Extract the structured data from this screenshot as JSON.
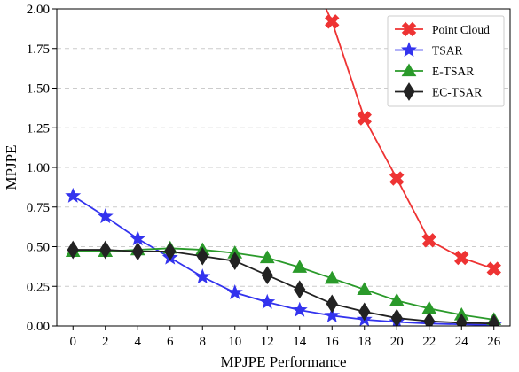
{
  "chart_data": {
    "type": "line",
    "xlabel": "MPJPE Performance",
    "ylabel": "MPJPE",
    "x": [
      0,
      2,
      4,
      6,
      8,
      10,
      12,
      14,
      16,
      18,
      20,
      22,
      24,
      26
    ],
    "xlim": [
      -1,
      27
    ],
    "ylim": [
      0,
      2.0
    ],
    "xticks": [
      "0",
      "2",
      "4",
      "6",
      "8",
      "10",
      "12",
      "14",
      "16",
      "18",
      "20",
      "22",
      "24",
      "26"
    ],
    "yticks": [
      "0.00",
      "0.25",
      "0.50",
      "0.75",
      "1.00",
      "1.25",
      "1.50",
      "1.75",
      "2.00"
    ],
    "grid": "y-dashed",
    "legend_position": "top-right",
    "series": [
      {
        "name": "Point Cloud",
        "color": "#ee3333",
        "marker": "x-cross-icon",
        "x": [
          15.4,
          16,
          18,
          20,
          22,
          24,
          26
        ],
        "values": [
          2.05,
          1.92,
          1.31,
          0.93,
          0.54,
          0.43,
          0.36
        ]
      },
      {
        "name": "TSAR",
        "color": "#3333ee",
        "marker": "star-icon",
        "values": [
          0.82,
          0.69,
          0.55,
          0.43,
          0.31,
          0.21,
          0.15,
          0.1,
          0.065,
          0.04,
          0.025,
          0.015,
          0.01,
          0.005
        ]
      },
      {
        "name": "E-TSAR",
        "color": "#2a9a2a",
        "marker": "triangle-icon",
        "values": [
          0.47,
          0.47,
          0.48,
          0.49,
          0.48,
          0.46,
          0.43,
          0.37,
          0.3,
          0.23,
          0.16,
          0.11,
          0.07,
          0.04
        ]
      },
      {
        "name": "EC-TSAR",
        "color": "#222222",
        "marker": "diamond-icon",
        "values": [
          0.48,
          0.48,
          0.47,
          0.47,
          0.44,
          0.41,
          0.32,
          0.23,
          0.14,
          0.09,
          0.05,
          0.03,
          0.02,
          0.015
        ]
      }
    ]
  }
}
